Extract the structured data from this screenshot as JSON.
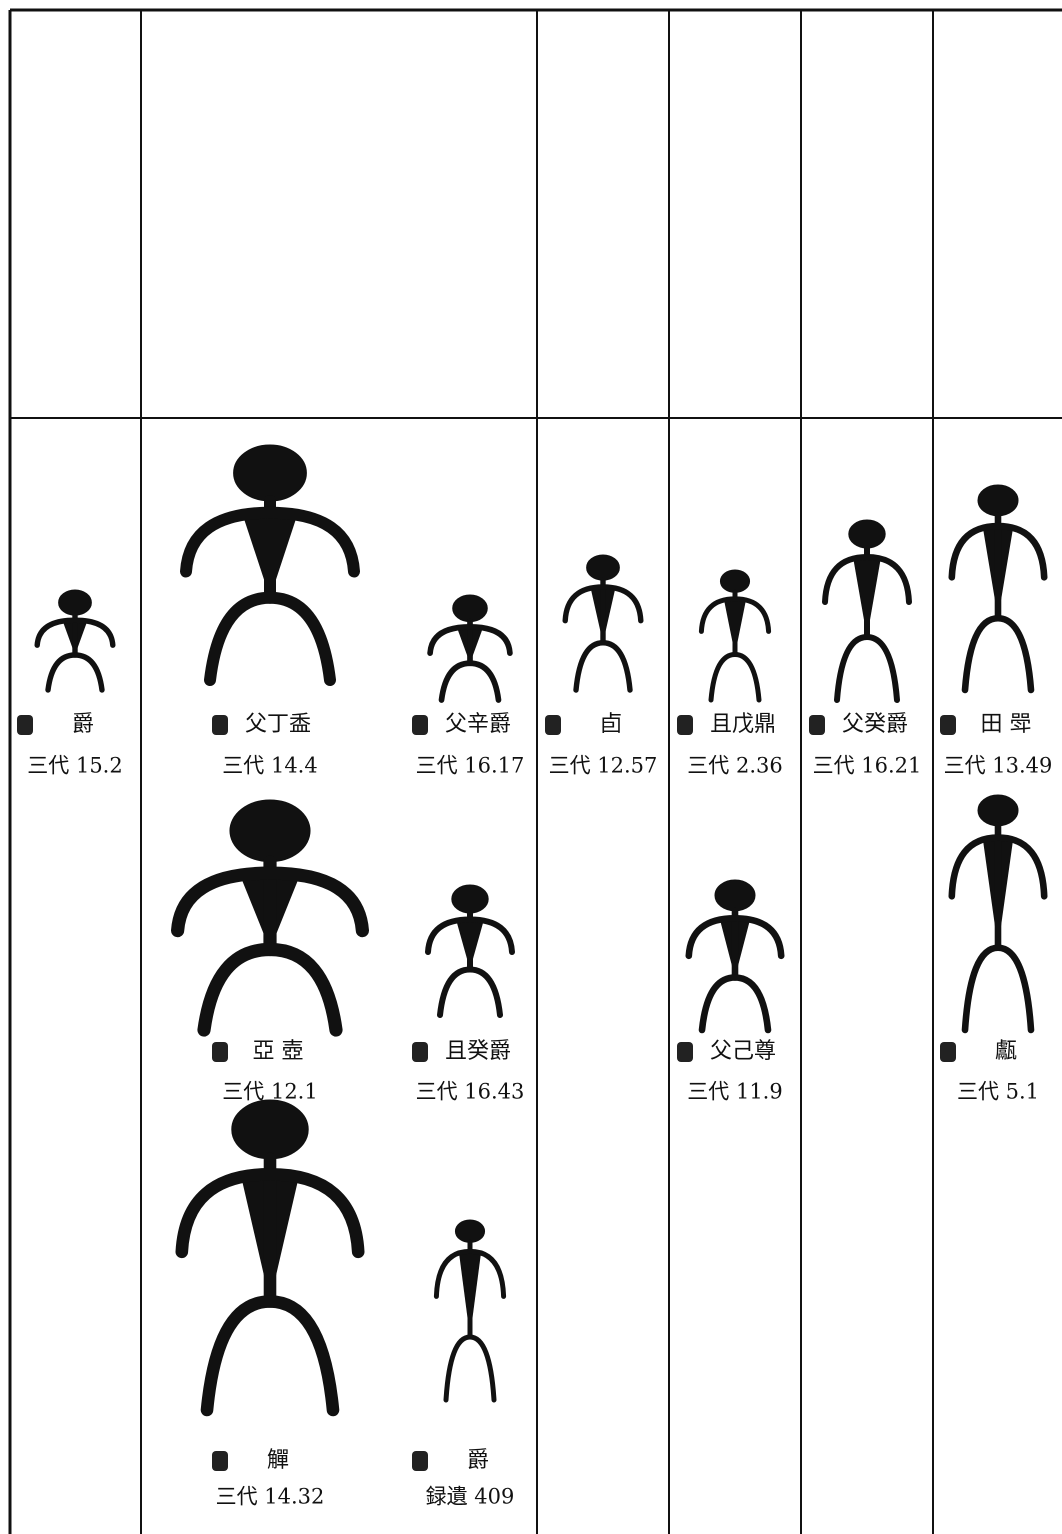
{
  "columns": [
    {
      "entries": [
        {
          "name": "爵",
          "source": "三代 15.2"
        }
      ]
    },
    {
      "entries": [
        {
          "name": "父丁盉",
          "source": "三代 14.4"
        },
        {
          "name": "父辛爵",
          "source": "三代 16.17"
        },
        {
          "name": "亞 壺",
          "source": "三代 12.1"
        },
        {
          "name": "且癸爵",
          "source": "三代 16.43"
        },
        {
          "name": "觶",
          "source": "三代 14.32"
        },
        {
          "name": "爵",
          "source": "録遺 409"
        }
      ]
    },
    {
      "entries": [
        {
          "name": "卣",
          "source": "三代 12.57"
        }
      ]
    },
    {
      "entries": [
        {
          "name": "且戊鼎",
          "source": "三代 2.36"
        },
        {
          "name": "父己尊",
          "source": "三代 11.9"
        }
      ]
    },
    {
      "entries": [
        {
          "name": "父癸爵",
          "source": "三代 16.21"
        }
      ]
    },
    {
      "entries": [
        {
          "name": "田 斝",
          "source": "三代 13.49"
        },
        {
          "name": "甗",
          "source": "三代 5.1"
        }
      ]
    }
  ]
}
